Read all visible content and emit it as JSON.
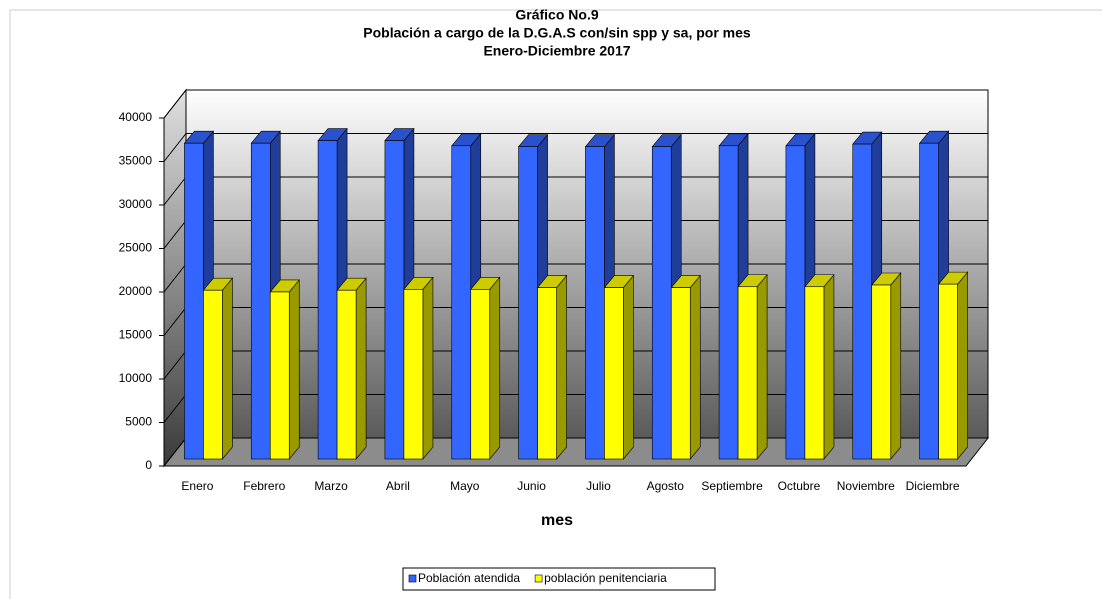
{
  "chart_data": {
    "type": "bar3d",
    "title_lines": [
      "Gráfico No.9",
      "Población a cargo de la D.G.A.S con/sin spp y sa, por mes",
      "Enero-Diciembre 2017"
    ],
    "x_label": "mes",
    "categories": [
      "Enero",
      "Febrero",
      "Marzo",
      "Abril",
      "Mayo",
      "Junio",
      "Julio",
      "Agosto",
      "Septiembre",
      "Octubre",
      "Noviembre",
      "Diciembre"
    ],
    "series": [
      {
        "name": "Población atendida",
        "color": "#3366ff",
        "values": [
          36300,
          36300,
          36600,
          36600,
          36000,
          35900,
          35900,
          35900,
          36000,
          36000,
          36200,
          36300
        ]
      },
      {
        "name": "población penitenciaria",
        "color": "#ffff00",
        "values": [
          19400,
          19200,
          19400,
          19500,
          19500,
          19700,
          19700,
          19700,
          19800,
          19800,
          20000,
          20100
        ]
      }
    ],
    "ylim": [
      0,
      40000
    ],
    "yticks": [
      0,
      5000,
      10000,
      15000,
      20000,
      25000,
      30000,
      35000,
      40000
    ],
    "grid": true,
    "legend": "bottom"
  }
}
